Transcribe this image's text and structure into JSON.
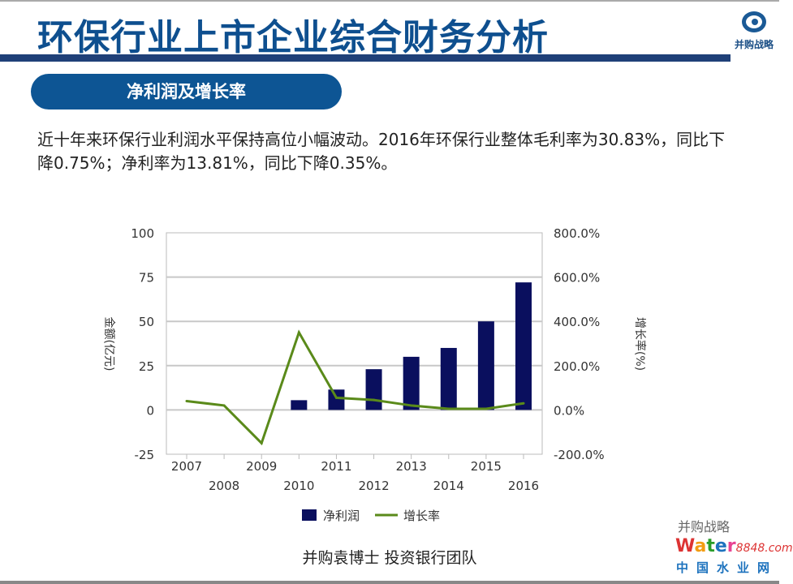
{
  "header": {
    "title": "环保行业上市企业综合财务分析",
    "logo_text": "并购战略"
  },
  "section": {
    "label": "净利润及增长率"
  },
  "paragraph": "近十年来环保行业利润水平保持高位小幅波动。2016年环保行业整体毛利率为30.83%，同比下降0.75%；净利率为13.81%，同比下降0.35%。",
  "chart_data": {
    "type": "bar+line",
    "categories": [
      "2007",
      "2008",
      "2009",
      "2010",
      "2011",
      "2012",
      "2013",
      "2014",
      "2015",
      "2016"
    ],
    "series": [
      {
        "name": "净利润",
        "type": "bar",
        "axis": "left",
        "color": "#0a0f5e",
        "values": [
          null,
          null,
          null,
          5.5,
          11.5,
          23,
          30,
          35,
          50,
          72
        ]
      },
      {
        "name": "增长率",
        "type": "line",
        "axis": "right",
        "color": "#5a8a1a",
        "values": [
          40,
          20,
          -150,
          350,
          55,
          45,
          20,
          5,
          5,
          30
        ]
      }
    ],
    "ylabel": "金额(亿元)",
    "y2label": "增长率(%)",
    "ylim": [
      -25,
      100
    ],
    "yticks": [
      "100",
      "75",
      "50",
      "25",
      "0",
      "-25"
    ],
    "y2lim": [
      -200,
      800
    ],
    "y2ticks": [
      "800.0%",
      "600.0%",
      "400.0%",
      "200.0%",
      "0.0%",
      "-200.0%"
    ],
    "grid": true,
    "legend": "bottom"
  },
  "footer": {
    "text": "并购袁博士 投资银行团队",
    "watermark": "并购战略",
    "site_brand": "Water8848.com",
    "site_cn": "中国水业网"
  }
}
